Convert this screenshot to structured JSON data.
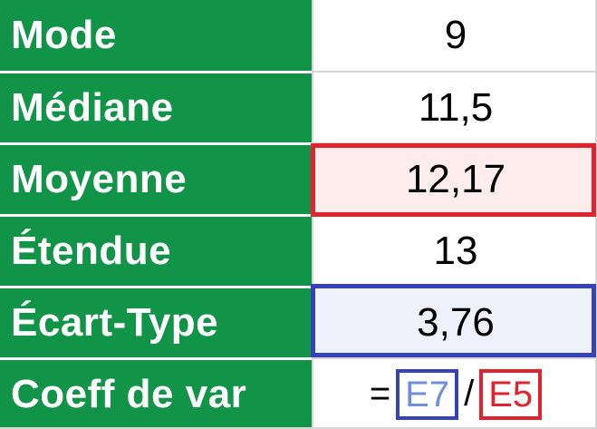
{
  "rows": [
    {
      "label": "Mode",
      "value": "9"
    },
    {
      "label": "Médiane",
      "value": "11,5"
    },
    {
      "label": "Moyenne",
      "value": "12,17"
    },
    {
      "label": "Étendue",
      "value": "13"
    },
    {
      "label": "Écart-Type",
      "value": "3,76"
    },
    {
      "label": "Coeff de var",
      "formula": {
        "equals": "=",
        "ref1": "E7",
        "operator": "/",
        "ref2": "E5"
      }
    }
  ],
  "colors": {
    "label_background": "#119447",
    "label_text": "#ffffff",
    "highlight_red": "#e0232f",
    "highlight_blue": "#3542b8",
    "reference_blue_text": "#6f8fd6"
  }
}
